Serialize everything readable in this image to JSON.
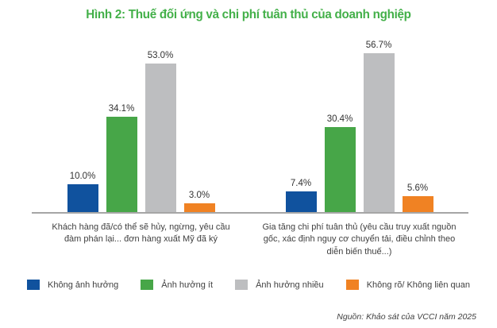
{
  "chart": {
    "title": "Hình 2: Thuế đối ứng và chi phí tuân thủ của doanh nghiệp"
  },
  "chart_data": {
    "type": "bar",
    "categories": [
      "Khách hàng đã/có thể sẽ hủy, ngừng, yêu cầu đàm phán lại... đơn hàng xuất Mỹ đã ký",
      "Gia tăng chi phí tuân thủ (yêu cầu truy xuất nguồn gốc, xác định nguy cơ chuyển tải, điều chỉnh theo diễn biến thuế...)"
    ],
    "series": [
      {
        "name": "Không ảnh hưởng",
        "color": "blue",
        "values": [
          10.0,
          7.4
        ],
        "labels": [
          "10.0%",
          "7.4%"
        ]
      },
      {
        "name": "Ảnh hưởng ít",
        "color": "green",
        "values": [
          34.1,
          30.4
        ],
        "labels": [
          "34.1%",
          "30.4%"
        ]
      },
      {
        "name": "Ảnh hưởng nhiều",
        "color": "gray",
        "values": [
          53.0,
          56.7
        ],
        "labels": [
          "53.0%",
          "56.7%"
        ]
      },
      {
        "name": "Không rõ/ Không liên quan",
        "color": "orange",
        "values": [
          3.0,
          5.6
        ],
        "labels": [
          "3.0%",
          "5.6%"
        ]
      }
    ],
    "ylim": [
      0,
      60
    ],
    "grid": false,
    "legend_position": "bottom",
    "value_label_format": "percent"
  },
  "colors": {
    "blue": "#10529E",
    "green": "#47A648",
    "gray": "#BDBEC0",
    "orange": "#F08223",
    "title_green": "#43B049",
    "axis_line": "#A6A6A6",
    "text_dark": "#404040"
  },
  "source": "Nguồn: Khảo sát của VCCI năm 2025"
}
